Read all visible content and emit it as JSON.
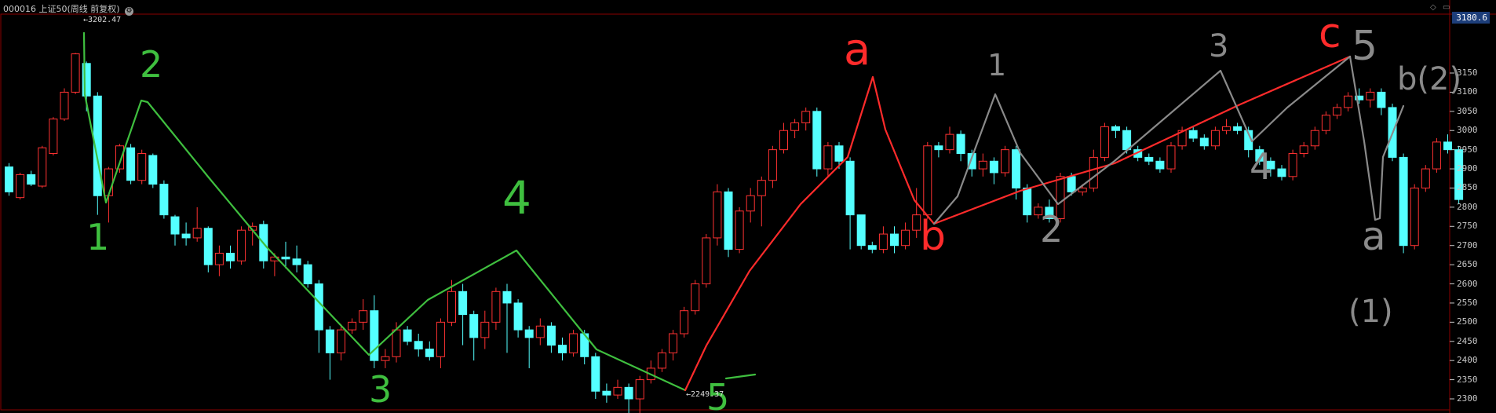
{
  "header": {
    "code": "000016",
    "name": "上证50",
    "params": "(周线 前复权)",
    "settings_icon": "gear-icon"
  },
  "toolbar": {
    "icons": [
      "diamond-icon",
      "minimize-icon",
      "close-icon"
    ]
  },
  "chart_data": {
    "type": "candlestick",
    "period": "weekly",
    "ylim": [
      2250,
      3200
    ],
    "yticks": [
      3150,
      3100,
      3050,
      3000,
      2950,
      2900,
      2850,
      2800,
      2750,
      2700,
      2650,
      2600,
      2550,
      2500,
      2450,
      2400,
      2350,
      2300
    ],
    "current_price_label": "3180.6",
    "annotations": {
      "high": "3202.47",
      "low": "2249.37"
    },
    "colors": {
      "up": "#ff3232",
      "down": "#54ffff",
      "grid_border": "#8b0000"
    },
    "candles": [
      [
        2905,
        2840,
        2915,
        2830
      ],
      [
        2825,
        2885,
        2890,
        2820
      ],
      [
        2885,
        2860,
        2895,
        2855
      ],
      [
        2855,
        2955,
        2960,
        2850
      ],
      [
        2940,
        3030,
        3035,
        2935
      ],
      [
        3030,
        3100,
        3110,
        3025
      ],
      [
        3100,
        3200,
        3202.47,
        3095
      ],
      [
        3175,
        3090,
        3180,
        3050
      ],
      [
        3090,
        2830,
        3100,
        2780
      ],
      [
        2830,
        2900,
        2905,
        2760
      ],
      [
        2900,
        2960,
        2965,
        2890
      ],
      [
        2955,
        2870,
        2965,
        2860
      ],
      [
        2870,
        2940,
        2950,
        2860
      ],
      [
        2935,
        2860,
        2940,
        2850
      ],
      [
        2860,
        2780,
        2870,
        2770
      ],
      [
        2775,
        2730,
        2780,
        2700
      ],
      [
        2730,
        2720,
        2760,
        2700
      ],
      [
        2720,
        2745,
        2800,
        2710
      ],
      [
        2745,
        2650,
        2750,
        2630
      ],
      [
        2650,
        2680,
        2700,
        2620
      ],
      [
        2680,
        2660,
        2700,
        2640
      ],
      [
        2660,
        2740,
        2750,
        2650
      ],
      [
        2740,
        2750,
        2760,
        2700
      ],
      [
        2755,
        2660,
        2765,
        2640
      ],
      [
        2660,
        2670,
        2680,
        2620
      ],
      [
        2670,
        2665,
        2710,
        2640
      ],
      [
        2665,
        2650,
        2700,
        2630
      ],
      [
        2650,
        2600,
        2660,
        2590
      ],
      [
        2600,
        2480,
        2610,
        2420
      ],
      [
        2480,
        2420,
        2490,
        2350
      ],
      [
        2420,
        2480,
        2495,
        2400
      ],
      [
        2480,
        2500,
        2510,
        2470
      ],
      [
        2500,
        2530,
        2560,
        2480
      ],
      [
        2530,
        2400,
        2570,
        2380
      ],
      [
        2400,
        2410,
        2430,
        2380
      ],
      [
        2410,
        2480,
        2500,
        2395
      ],
      [
        2480,
        2450,
        2490,
        2440
      ],
      [
        2450,
        2430,
        2470,
        2410
      ],
      [
        2430,
        2410,
        2450,
        2400
      ],
      [
        2410,
        2500,
        2510,
        2380
      ],
      [
        2500,
        2580,
        2610,
        2490
      ],
      [
        2580,
        2520,
        2600,
        2440
      ],
      [
        2520,
        2460,
        2530,
        2400
      ],
      [
        2460,
        2500,
        2530,
        2430
      ],
      [
        2500,
        2580,
        2590,
        2480
      ],
      [
        2580,
        2550,
        2600,
        2420
      ],
      [
        2550,
        2480,
        2560,
        2460
      ],
      [
        2480,
        2460,
        2490,
        2380
      ],
      [
        2460,
        2490,
        2510,
        2440
      ],
      [
        2490,
        2440,
        2500,
        2420
      ],
      [
        2440,
        2420,
        2460,
        2400
      ],
      [
        2420,
        2470,
        2480,
        2410
      ],
      [
        2470,
        2410,
        2480,
        2390
      ],
      [
        2410,
        2320,
        2420,
        2300
      ],
      [
        2320,
        2310,
        2340,
        2290
      ],
      [
        2310,
        2330,
        2350,
        2300
      ],
      [
        2330,
        2300,
        2340,
        2260
      ],
      [
        2300,
        2350,
        2360,
        2249.37
      ],
      [
        2350,
        2380,
        2400,
        2340
      ],
      [
        2380,
        2420,
        2430,
        2370
      ],
      [
        2420,
        2470,
        2480,
        2400
      ],
      [
        2470,
        2530,
        2540,
        2460
      ],
      [
        2530,
        2600,
        2610,
        2520
      ],
      [
        2600,
        2720,
        2730,
        2590
      ],
      [
        2720,
        2840,
        2860,
        2700
      ],
      [
        2840,
        2690,
        2850,
        2670
      ],
      [
        2690,
        2790,
        2800,
        2680
      ],
      [
        2790,
        2830,
        2850,
        2760
      ],
      [
        2830,
        2870,
        2880,
        2750
      ],
      [
        2870,
        2950,
        2960,
        2850
      ],
      [
        2950,
        3000,
        3020,
        2940
      ],
      [
        3000,
        3020,
        3030,
        2980
      ],
      [
        3020,
        3050,
        3060,
        3000
      ],
      [
        3050,
        2900,
        3060,
        2880
      ],
      [
        2900,
        2960,
        2970,
        2880
      ],
      [
        2960,
        2920,
        2970,
        2900
      ],
      [
        2920,
        2780,
        2930,
        2690
      ],
      [
        2780,
        2700,
        2780,
        2690
      ],
      [
        2700,
        2690,
        2710,
        2680
      ],
      [
        2690,
        2730,
        2750,
        2680
      ],
      [
        2730,
        2700,
        2750,
        2680
      ],
      [
        2700,
        2740,
        2760,
        2690
      ],
      [
        2740,
        2780,
        2850,
        2720
      ],
      [
        2780,
        2960,
        2970,
        2770
      ],
      [
        2960,
        2950,
        2970,
        2930
      ],
      [
        2950,
        2990,
        3010,
        2940
      ],
      [
        2990,
        2940,
        3000,
        2920
      ],
      [
        2940,
        2900,
        2950,
        2880
      ],
      [
        2900,
        2920,
        2940,
        2880
      ],
      [
        2920,
        2890,
        2930,
        2860
      ],
      [
        2890,
        2950,
        2960,
        2880
      ],
      [
        2950,
        2850,
        2960,
        2820
      ],
      [
        2850,
        2780,
        2860,
        2760
      ],
      [
        2780,
        2800,
        2810,
        2770
      ],
      [
        2800,
        2770,
        2820,
        2760
      ],
      [
        2770,
        2880,
        2890,
        2760
      ],
      [
        2880,
        2840,
        2890,
        2830
      ],
      [
        2840,
        2850,
        2860,
        2830
      ],
      [
        2850,
        2930,
        2950,
        2840
      ],
      [
        2930,
        3010,
        3020,
        2920
      ],
      [
        3010,
        3000,
        3015,
        2980
      ],
      [
        3000,
        2950,
        3010,
        2940
      ],
      [
        2950,
        2930,
        2960,
        2920
      ],
      [
        2930,
        2920,
        2940,
        2910
      ],
      [
        2920,
        2900,
        2930,
        2890
      ],
      [
        2900,
        2960,
        2970,
        2890
      ],
      [
        2960,
        3000,
        3010,
        2950
      ],
      [
        3000,
        2980,
        3010,
        2970
      ],
      [
        2980,
        2960,
        2990,
        2950
      ],
      [
        2960,
        3000,
        3010,
        2950
      ],
      [
        3000,
        3010,
        3030,
        2990
      ],
      [
        3010,
        3000,
        3020,
        2990
      ],
      [
        3000,
        2950,
        3010,
        2930
      ],
      [
        2950,
        2920,
        2960,
        2910
      ],
      [
        2920,
        2900,
        2930,
        2880
      ],
      [
        2900,
        2880,
        2910,
        2870
      ],
      [
        2880,
        2940,
        2950,
        2870
      ],
      [
        2940,
        2960,
        2970,
        2930
      ],
      [
        2960,
        3000,
        3010,
        2950
      ],
      [
        3000,
        3040,
        3050,
        2990
      ],
      [
        3040,
        3060,
        3070,
        3030
      ],
      [
        3060,
        3090,
        3100,
        3050
      ],
      [
        3090,
        3080,
        3110,
        3070
      ],
      [
        3080,
        3100,
        3110,
        3060
      ],
      [
        3100,
        3060,
        3110,
        3040
      ],
      [
        3060,
        2930,
        3070,
        2920
      ],
      [
        2930,
        2700,
        2940,
        2680
      ],
      [
        2700,
        2850,
        2860,
        2690
      ],
      [
        2850,
        2900,
        2910,
        2840
      ],
      [
        2900,
        2970,
        2980,
        2890
      ],
      [
        2970,
        2950,
        2990,
        2940
      ],
      [
        2950,
        2820,
        2960,
        2810
      ]
    ]
  }
}
